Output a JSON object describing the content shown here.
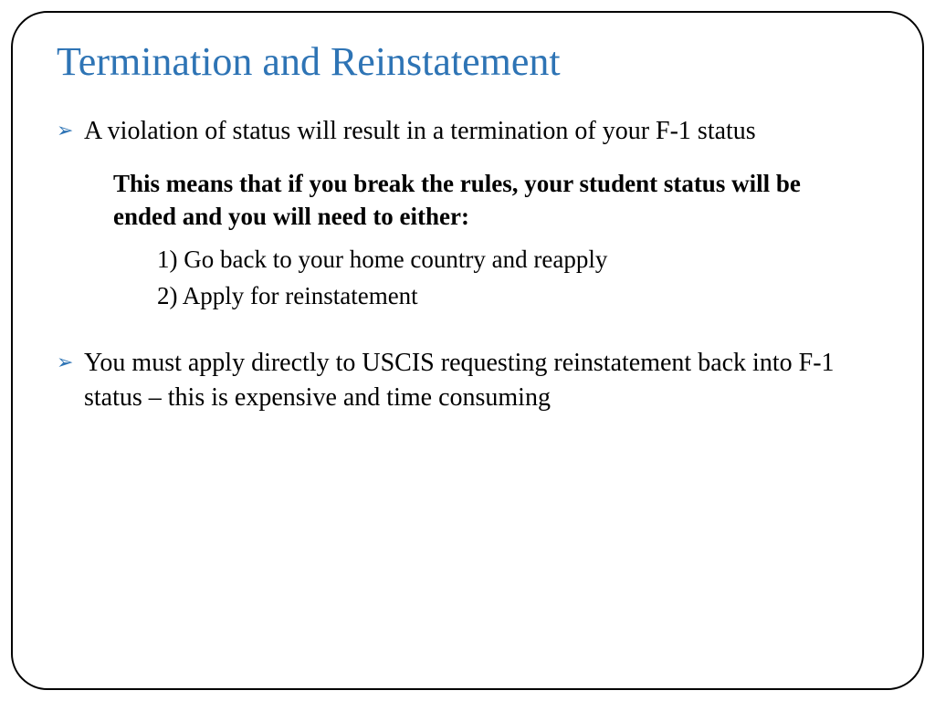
{
  "title": "Termination and Reinstatement",
  "bullets": [
    {
      "text": "A violation of status will result in a termination of your F-1 status"
    },
    {
      "text": "You must apply directly to USCIS requesting reinstatement back into F-1 status – this is expensive and time consuming"
    }
  ],
  "bold_text": "This means that if you break the rules, your student status will be ended and you will need to either:",
  "numbered_items": [
    "1) Go back to your home country and reapply",
    "2) Apply for reinstatement"
  ],
  "colors": {
    "title": "#2e74b5",
    "bullet_marker": "#2e74b5",
    "text": "#000000",
    "border": "#000000",
    "background": "#ffffff"
  },
  "fonts": {
    "title_size": 44,
    "body_size": 28,
    "bold_size": 27,
    "numbered_size": 27
  }
}
